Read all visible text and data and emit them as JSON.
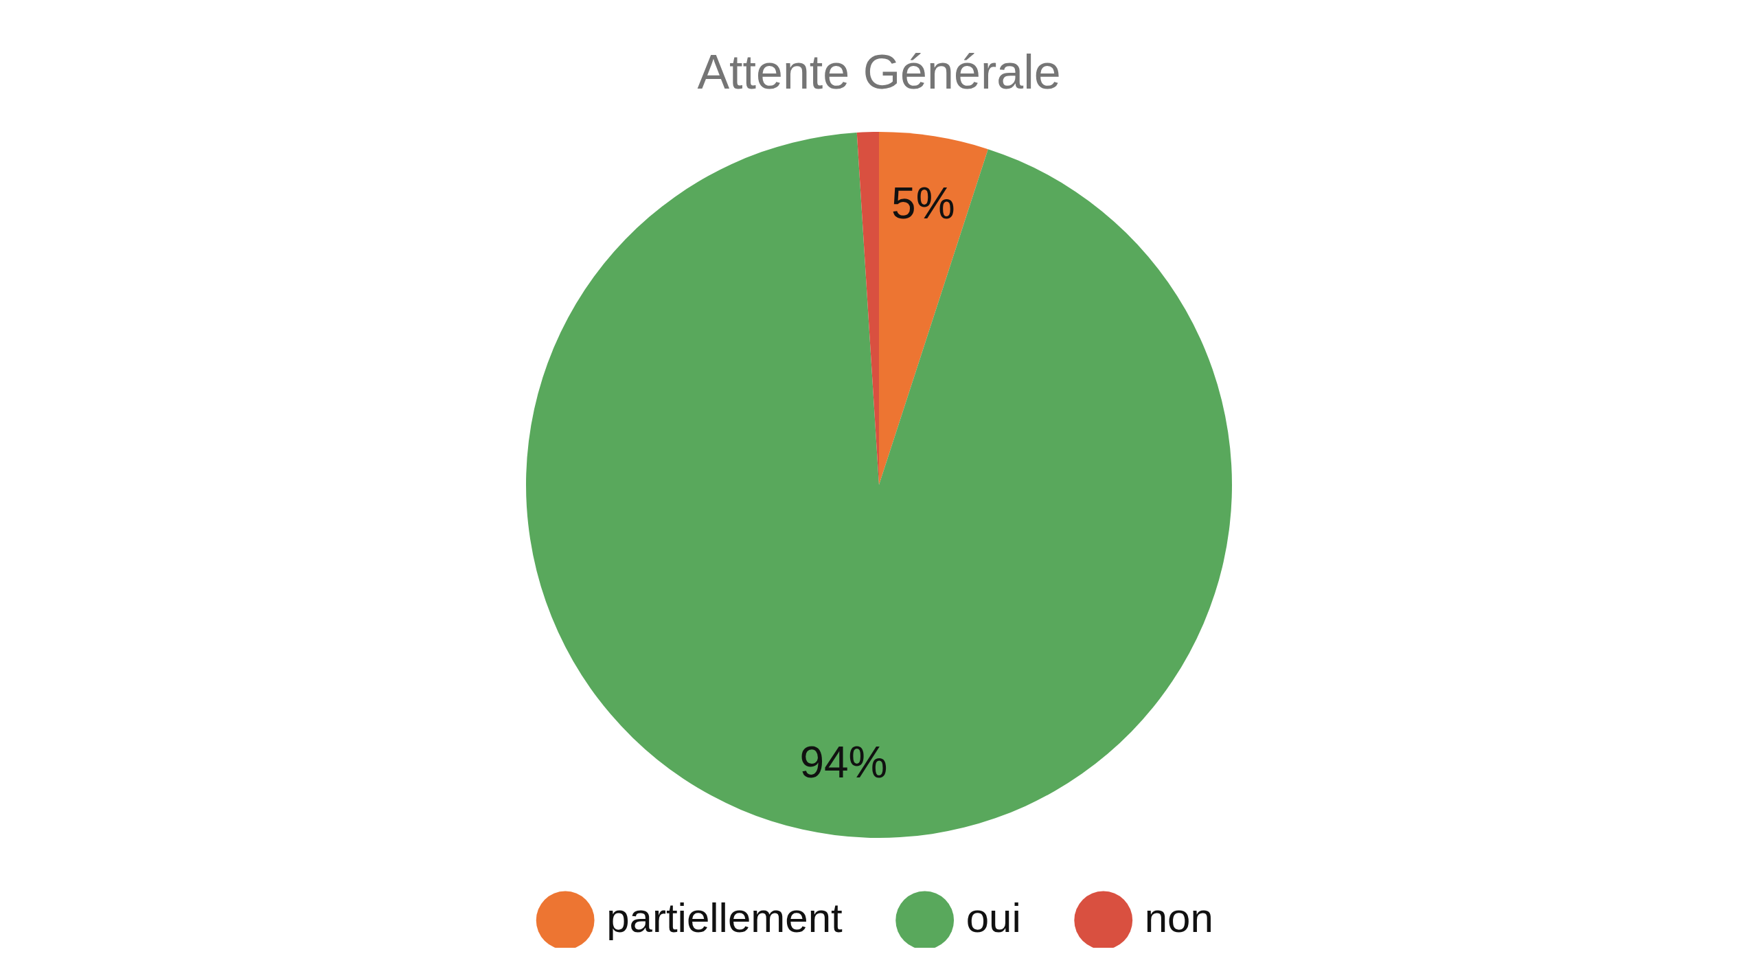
{
  "chart_data": {
    "type": "pie",
    "title": "Attente Générale",
    "categories": [
      "partiellement",
      "oui",
      "non"
    ],
    "values": [
      5,
      94,
      1
    ],
    "colors": [
      "#ed7532",
      "#59a85c",
      "#d95040"
    ],
    "value_labels": [
      "5%",
      "94%",
      null
    ],
    "legend": "bottom"
  }
}
